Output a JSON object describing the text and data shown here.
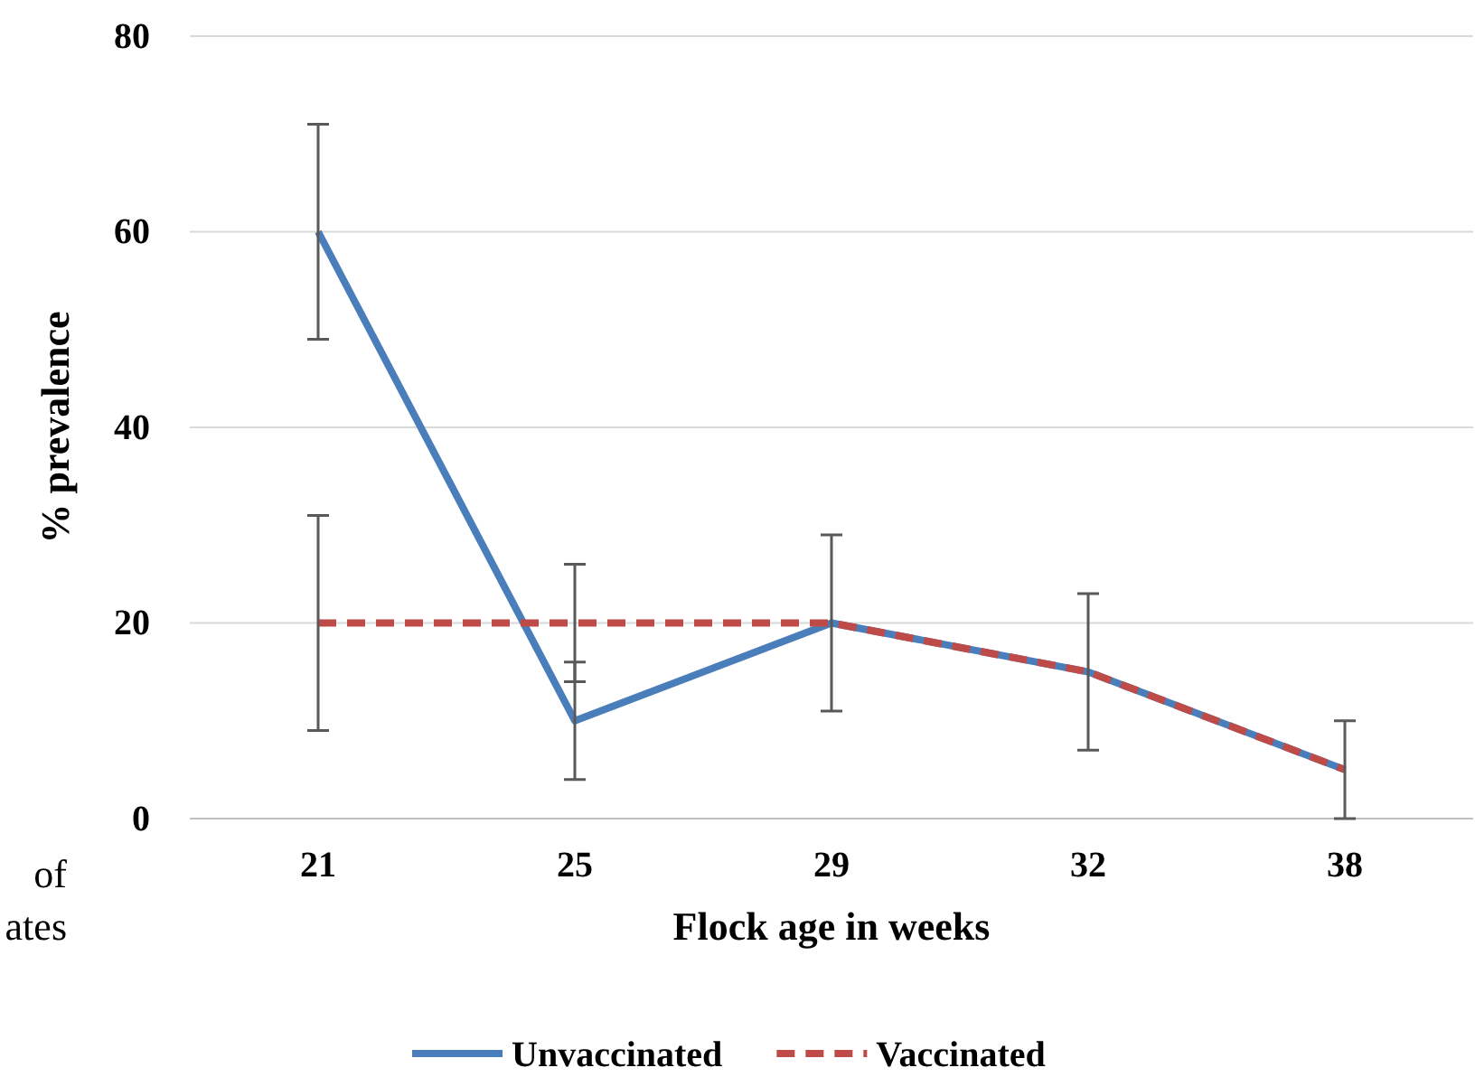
{
  "chart_data": {
    "type": "line",
    "xlabel": "Flock age in weeks",
    "ylabel": "% prevalence",
    "categories": [
      "21",
      "25",
      "29",
      "32",
      "38"
    ],
    "ylim": [
      0,
      80
    ],
    "yticks": [
      0,
      20,
      40,
      60,
      80
    ],
    "grid": "y",
    "legend": "bottom",
    "marker": "none",
    "series": [
      {
        "name": "Unvaccinated",
        "color": "#4a7ebb",
        "line_style": "solid",
        "values": [
          60,
          10,
          20,
          15,
          5
        ],
        "errors": [
          [
            49,
            71
          ],
          [
            4,
            16
          ],
          [
            11,
            29
          ],
          [
            7,
            23
          ],
          [
            0,
            10
          ]
        ]
      },
      {
        "name": "Vaccinated",
        "color": "#be4b48",
        "line_style": "dashed",
        "values": [
          20,
          20,
          20,
          15,
          5
        ],
        "errors": [
          [
            9,
            31
          ],
          [
            14,
            26
          ],
          null,
          null,
          null
        ]
      }
    ],
    "annotations": [
      "of",
      "ates"
    ]
  }
}
